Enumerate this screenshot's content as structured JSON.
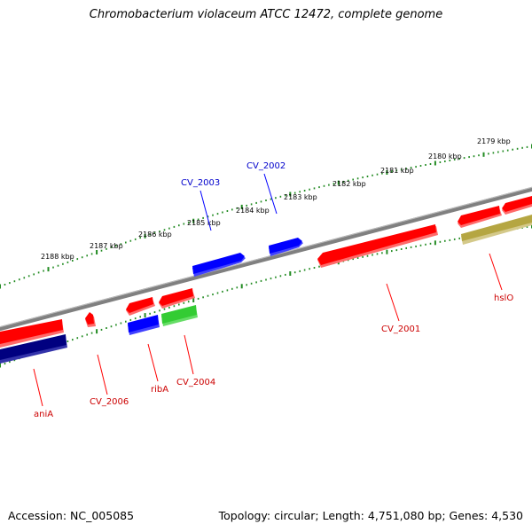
{
  "title": "Chromobacterium violaceum ATCC 12472, complete genome",
  "footer": {
    "accession": "Accession: NC_005085",
    "summary": "Topology: circular; Length: 4,751,080 bp; Genes: 4,530"
  },
  "colors": {
    "backbone": "#808080",
    "ticks": "#228B22",
    "gene_red": "#ff0000",
    "gene_blue": "#0000ff",
    "gene_green": "#33cc33",
    "gene_navy": "#000080",
    "gene_olive": "#b5a642",
    "label_red": "#cc0000",
    "label_blue": "#0000cc"
  },
  "scale_labels": [
    "2179 kbp",
    "2180 kbp",
    "2181 kbp",
    "2182 kbp",
    "2183 kbp",
    "2184 kbp",
    "2185 kbp",
    "2186 kbp",
    "2187 kbp",
    "2188 kbp"
  ],
  "gene_labels": [
    {
      "name": "CV_2002",
      "strand": "forward",
      "color": "blue"
    },
    {
      "name": "CV_2003",
      "strand": "forward",
      "color": "blue"
    },
    {
      "name": "CV_2001",
      "strand": "reverse",
      "color": "red"
    },
    {
      "name": "hslO",
      "strand": "reverse",
      "color": "red"
    },
    {
      "name": "ribA",
      "strand": "reverse",
      "color": "red"
    },
    {
      "name": "CV_2004",
      "strand": "reverse",
      "color": "red"
    },
    {
      "name": "CV_2006",
      "strand": "reverse",
      "color": "red"
    },
    {
      "name": "aniA",
      "strand": "reverse",
      "color": "red"
    }
  ]
}
